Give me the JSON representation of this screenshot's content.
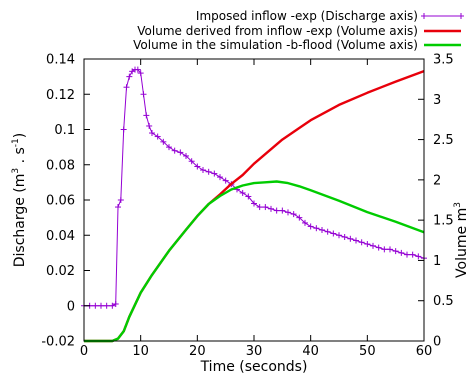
{
  "chart_data": {
    "type": "line",
    "xlabel": "Time (seconds)",
    "ylabel_left": "Discharge (m³ . s⁻¹)",
    "ylabel_left_parts": [
      "Discharge (m",
      "3",
      " . s",
      "-1",
      ")"
    ],
    "ylabel_right": "Volume m³",
    "ylabel_right_parts": [
      "Volume m",
      "3"
    ],
    "xlim": [
      0,
      60
    ],
    "ylim_left": [
      -0.02,
      0.14
    ],
    "ylim_right": [
      0,
      3.5
    ],
    "grid": false,
    "legend_position": "top-right",
    "x_ticks": [
      0,
      10,
      20,
      30,
      40,
      50,
      60
    ],
    "y_ticks_left": [
      -0.02,
      0,
      0.02,
      0.04,
      0.06,
      0.08,
      0.1,
      0.12,
      0.14
    ],
    "y_ticks_left_labels": [
      "-0.02",
      "0",
      "0.02",
      "0.04",
      "0.06",
      "0.08",
      "0.1",
      "0.12",
      "0.14"
    ],
    "y_ticks_right": [
      0,
      0.5,
      1,
      1.5,
      2,
      2.5,
      3,
      3.5
    ],
    "y_ticks_right_labels": [
      "0",
      "0.5",
      "1",
      "1.5",
      "2",
      "2.5",
      "3",
      "3.5"
    ],
    "series": [
      {
        "name": "Imposed inflow -exp (Discharge axis)",
        "axis": "left",
        "color": "#9400d3",
        "marker": "plus",
        "x": [
          0,
          1,
          2,
          3,
          4,
          5,
          5.6,
          6,
          6.5,
          7,
          7.5,
          8,
          8.5,
          9,
          9.5,
          10,
          10.5,
          11,
          11.5,
          12,
          13,
          14,
          15,
          16,
          17,
          18,
          19,
          20,
          21,
          22,
          23,
          24,
          25,
          26,
          27,
          28,
          29,
          30,
          31,
          32,
          33,
          34,
          35,
          36,
          37,
          38,
          39,
          40,
          41,
          42,
          43,
          44,
          45,
          46,
          47,
          48,
          49,
          50,
          51,
          52,
          53,
          54,
          55,
          56,
          57,
          58,
          59,
          60
        ],
        "y": [
          0,
          0,
          0,
          0,
          0,
          0,
          0.001,
          0.056,
          0.06,
          0.1,
          0.124,
          0.13,
          0.133,
          0.134,
          0.134,
          0.132,
          0.12,
          0.108,
          0.102,
          0.098,
          0.096,
          0.093,
          0.09,
          0.088,
          0.087,
          0.085,
          0.082,
          0.079,
          0.077,
          0.076,
          0.075,
          0.073,
          0.071,
          0.069,
          0.066,
          0.064,
          0.062,
          0.058,
          0.056,
          0.056,
          0.055,
          0.054,
          0.054,
          0.053,
          0.052,
          0.05,
          0.047,
          0.045,
          0.044,
          0.043,
          0.042,
          0.041,
          0.04,
          0.039,
          0.038,
          0.037,
          0.036,
          0.035,
          0.034,
          0.033,
          0.032,
          0.032,
          0.031,
          0.03,
          0.029,
          0.029,
          0.028,
          0.027
        ]
      },
      {
        "name": "Volume derived from inflow -exp (Volume axis)",
        "axis": "right",
        "color": "#e8000b",
        "marker": "none",
        "x": [
          0,
          5,
          6,
          7,
          8,
          10,
          12,
          15,
          18,
          20,
          22,
          24,
          26,
          28,
          30,
          35,
          40,
          45,
          50,
          55,
          60
        ],
        "y": [
          0,
          0,
          0.03,
          0.12,
          0.3,
          0.6,
          0.82,
          1.12,
          1.38,
          1.55,
          1.7,
          1.82,
          1.95,
          2.06,
          2.2,
          2.5,
          2.74,
          2.93,
          3.08,
          3.22,
          3.35
        ]
      },
      {
        "name": "Volume in the simulation -b-flood (Volume axis)",
        "axis": "right",
        "color": "#00cc00",
        "marker": "none",
        "x": [
          0,
          5,
          6,
          7,
          8,
          10,
          12,
          15,
          18,
          20,
          22,
          24,
          26,
          28,
          30,
          32,
          34,
          36,
          38,
          40,
          45,
          50,
          55,
          60
        ],
        "y": [
          0,
          0,
          0.03,
          0.12,
          0.3,
          0.6,
          0.82,
          1.12,
          1.38,
          1.55,
          1.7,
          1.8,
          1.88,
          1.93,
          1.96,
          1.97,
          1.98,
          1.96,
          1.92,
          1.87,
          1.74,
          1.6,
          1.48,
          1.35
        ]
      }
    ]
  }
}
